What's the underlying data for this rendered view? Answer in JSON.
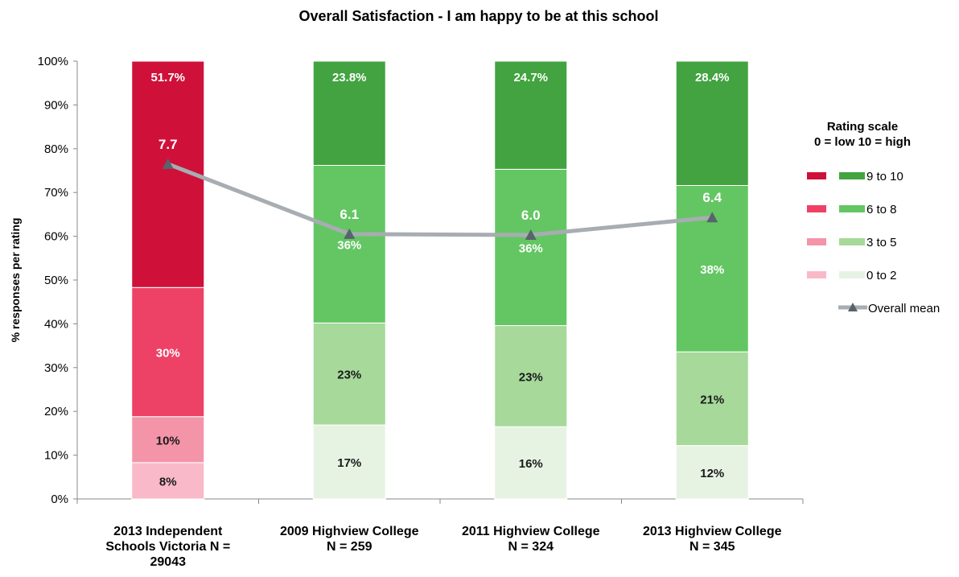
{
  "chart_data": {
    "type": "bar",
    "stacked": true,
    "title": "Overall Satisfaction - I am happy to be at this school",
    "ylabel": "% responses per rating",
    "xlabel": "",
    "ylim": [
      0,
      100
    ],
    "y_ticks": [
      "0%",
      "10%",
      "20%",
      "30%",
      "40%",
      "50%",
      "60%",
      "70%",
      "80%",
      "90%",
      "100%"
    ],
    "grid": false,
    "categories": [
      [
        "2013 Independent",
        "Schools Victoria  N =",
        "29043"
      ],
      [
        "2009 Highview College",
        "N = 259"
      ],
      [
        "2011 Highview College",
        "N = 324"
      ],
      [
        "2013 Highview College",
        "N = 345"
      ]
    ],
    "series": [
      {
        "name": "0 to 2",
        "values": [
          8.3,
          16.9,
          16.5,
          12.2
        ],
        "labels": [
          "8%",
          "17%",
          "16%",
          "12%"
        ],
        "colors": [
          "#f9b9c8",
          "#e6f3e3",
          "#e6f3e3",
          "#e6f3e3"
        ],
        "label_color": "#1a1a1a"
      },
      {
        "name": "3 to 5",
        "values": [
          10.5,
          23.3,
          23.1,
          21.4
        ],
        "labels": [
          "10%",
          "23%",
          "23%",
          "21%"
        ],
        "colors": [
          "#f394a9",
          "#a6d99a",
          "#a6d99a",
          "#a6d99a"
        ],
        "label_color": "#1a1a1a"
      },
      {
        "name": "6 to 8",
        "values": [
          29.5,
          36.0,
          35.7,
          38.0
        ],
        "labels": [
          "30%",
          "36%",
          "36%",
          "38%"
        ],
        "colors": [
          "#ee4166",
          "#63c663",
          "#63c663",
          "#63c663"
        ],
        "label_color": "#ffffff"
      },
      {
        "name": "9 to 10",
        "values": [
          51.7,
          23.8,
          24.7,
          28.4
        ],
        "labels": [
          "51.7%",
          "23.8%",
          "24.7%",
          "28.4%"
        ],
        "colors": [
          "#cf1139",
          "#42a340",
          "#42a340",
          "#42a340"
        ],
        "label_color": "#ffffff"
      }
    ],
    "mean": {
      "name": "Overall mean",
      "values": [
        7.7,
        6.1,
        6.0,
        6.4
      ],
      "labels": [
        "7.7",
        "6.1",
        "6.0",
        "6.4"
      ],
      "plot_percent": [
        76.5,
        60.5,
        60.3,
        64.3
      ],
      "color": "#a7adb2",
      "marker_color": "#59626d"
    },
    "legend": {
      "title": [
        "Rating scale",
        "0 = low   10 = high"
      ],
      "placement": "right",
      "items": [
        {
          "label": "9 to 10",
          "red": "#cf1139",
          "green": "#42a340"
        },
        {
          "label": "6 to 8",
          "red": "#ee4166",
          "green": "#63c663"
        },
        {
          "label": "3 to 5",
          "red": "#f394a9",
          "green": "#a6d99a"
        },
        {
          "label": "0 to 2",
          "red": "#f9b9c8",
          "green": "#e6f3e3"
        }
      ],
      "mean_label": "Overall mean"
    }
  }
}
